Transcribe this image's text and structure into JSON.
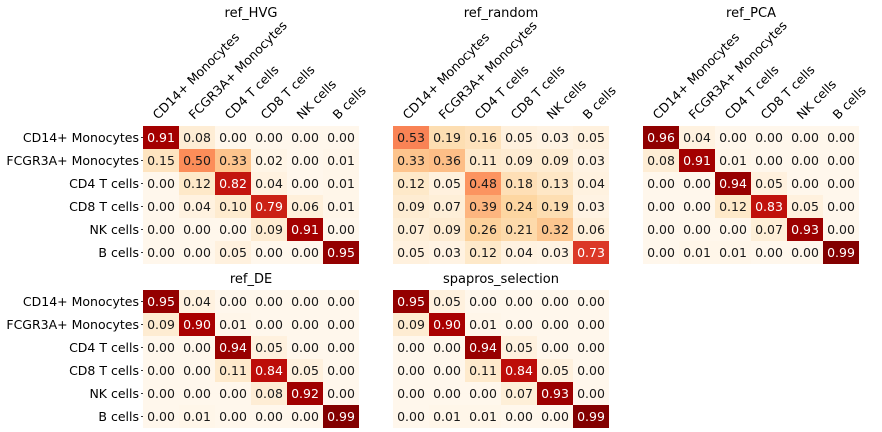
{
  "chart_data": [
    {
      "type": "heatmap",
      "title": "ref_HVG",
      "row_labels": [
        "CD14+ Monocytes",
        "FCGR3A+ Monocytes",
        "CD4 T cells",
        "CD8 T cells",
        "NK cells",
        "B cells"
      ],
      "col_labels": [
        "CD14+ Monocytes",
        "FCGR3A+ Monocytes",
        "CD4 T cells",
        "CD8 T cells",
        "NK cells",
        "B cells"
      ],
      "values": [
        [
          "0.91",
          "0.08",
          "0.00",
          "0.00",
          "0.00",
          "0.00"
        ],
        [
          "0.15",
          "0.50",
          "0.33",
          "0.02",
          "0.00",
          "0.01"
        ],
        [
          "0.00",
          "0.12",
          "0.82",
          "0.04",
          "0.00",
          "0.01"
        ],
        [
          "0.00",
          "0.04",
          "0.10",
          "0.79",
          "0.06",
          "0.01"
        ],
        [
          "0.00",
          "0.00",
          "0.00",
          "0.09",
          "0.91",
          "0.00"
        ],
        [
          "0.00",
          "0.00",
          "0.05",
          "0.00",
          "0.00",
          "0.95"
        ]
      ]
    },
    {
      "type": "heatmap",
      "title": "ref_random",
      "row_labels": [
        "CD14+ Monocytes",
        "FCGR3A+ Monocytes",
        "CD4 T cells",
        "CD8 T cells",
        "NK cells",
        "B cells"
      ],
      "col_labels": [
        "CD14+ Monocytes",
        "FCGR3A+ Monocytes",
        "CD4 T cells",
        "CD8 T cells",
        "NK cells",
        "B cells"
      ],
      "values": [
        [
          "0.53",
          "0.19",
          "0.16",
          "0.05",
          "0.03",
          "0.05"
        ],
        [
          "0.33",
          "0.36",
          "0.11",
          "0.09",
          "0.09",
          "0.03"
        ],
        [
          "0.12",
          "0.05",
          "0.48",
          "0.18",
          "0.13",
          "0.04"
        ],
        [
          "0.09",
          "0.07",
          "0.39",
          "0.24",
          "0.19",
          "0.03"
        ],
        [
          "0.07",
          "0.09",
          "0.26",
          "0.21",
          "0.32",
          "0.06"
        ],
        [
          "0.05",
          "0.03",
          "0.12",
          "0.04",
          "0.03",
          "0.73"
        ]
      ]
    },
    {
      "type": "heatmap",
      "title": "ref_PCA",
      "row_labels": [
        "CD14+ Monocytes",
        "FCGR3A+ Monocytes",
        "CD4 T cells",
        "CD8 T cells",
        "NK cells",
        "B cells"
      ],
      "col_labels": [
        "CD14+ Monocytes",
        "FCGR3A+ Monocytes",
        "CD4 T cells",
        "CD8 T cells",
        "NK cells",
        "B cells"
      ],
      "values": [
        [
          "0.96",
          "0.04",
          "0.00",
          "0.00",
          "0.00",
          "0.00"
        ],
        [
          "0.08",
          "0.91",
          "0.01",
          "0.00",
          "0.00",
          "0.00"
        ],
        [
          "0.00",
          "0.00",
          "0.94",
          "0.05",
          "0.00",
          "0.00"
        ],
        [
          "0.00",
          "0.00",
          "0.12",
          "0.83",
          "0.05",
          "0.00"
        ],
        [
          "0.00",
          "0.00",
          "0.00",
          "0.07",
          "0.93",
          "0.00"
        ],
        [
          "0.00",
          "0.01",
          "0.01",
          "0.00",
          "0.00",
          "0.99"
        ]
      ]
    },
    {
      "type": "heatmap",
      "title": "ref_DE",
      "row_labels": [
        "CD14+ Monocytes",
        "FCGR3A+ Monocytes",
        "CD4 T cells",
        "CD8 T cells",
        "NK cells",
        "B cells"
      ],
      "col_labels": [],
      "values": [
        [
          "0.95",
          "0.04",
          "0.00",
          "0.00",
          "0.00",
          "0.00"
        ],
        [
          "0.09",
          "0.90",
          "0.01",
          "0.00",
          "0.00",
          "0.00"
        ],
        [
          "0.00",
          "0.00",
          "0.94",
          "0.05",
          "0.00",
          "0.00"
        ],
        [
          "0.00",
          "0.00",
          "0.11",
          "0.84",
          "0.05",
          "0.00"
        ],
        [
          "0.00",
          "0.00",
          "0.00",
          "0.08",
          "0.92",
          "0.00"
        ],
        [
          "0.00",
          "0.01",
          "0.00",
          "0.00",
          "0.00",
          "0.99"
        ]
      ]
    },
    {
      "type": "heatmap",
      "title": "spapros_selection",
      "row_labels": [
        "CD14+ Monocytes",
        "FCGR3A+ Monocytes",
        "CD4 T cells",
        "CD8 T cells",
        "NK cells",
        "B cells"
      ],
      "col_labels": [],
      "values": [
        [
          "0.95",
          "0.05",
          "0.00",
          "0.00",
          "0.00",
          "0.00"
        ],
        [
          "0.09",
          "0.90",
          "0.01",
          "0.00",
          "0.00",
          "0.00"
        ],
        [
          "0.00",
          "0.00",
          "0.94",
          "0.05",
          "0.00",
          "0.00"
        ],
        [
          "0.00",
          "0.00",
          "0.11",
          "0.84",
          "0.05",
          "0.00"
        ],
        [
          "0.00",
          "0.00",
          "0.00",
          "0.07",
          "0.93",
          "0.00"
        ],
        [
          "0.00",
          "0.01",
          "0.01",
          "0.00",
          "0.00",
          "0.99"
        ]
      ]
    }
  ],
  "colormap": "OrRd",
  "color_range": [
    0,
    1
  ],
  "grid": false,
  "legend": "none"
}
